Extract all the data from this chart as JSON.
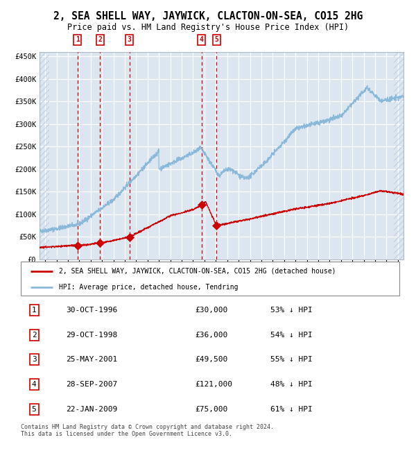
{
  "title": "2, SEA SHELL WAY, JAYWICK, CLACTON-ON-SEA, CO15 2HG",
  "subtitle": "Price paid vs. HM Land Registry's House Price Index (HPI)",
  "title_fontsize": 10.5,
  "subtitle_fontsize": 8.5,
  "bg_color": "#dce6f1",
  "hatch_color": "#c5d3e8",
  "grid_color": "#ffffff",
  "sale_color": "#cc0000",
  "hpi_color": "#89b8d8",
  "vline_color": "#cc0000",
  "ylim": [
    0,
    460000
  ],
  "yticks": [
    0,
    50000,
    100000,
    150000,
    200000,
    250000,
    300000,
    350000,
    400000,
    450000
  ],
  "ytick_labels": [
    "£0",
    "£50K",
    "£100K",
    "£150K",
    "£200K",
    "£250K",
    "£300K",
    "£350K",
    "£400K",
    "£450K"
  ],
  "sales": [
    {
      "date_num": 1996.83,
      "price": 30000,
      "label": "1"
    },
    {
      "date_num": 1998.83,
      "price": 36000,
      "label": "2"
    },
    {
      "date_num": 2001.4,
      "price": 49500,
      "label": "3"
    },
    {
      "date_num": 2007.74,
      "price": 121000,
      "label": "4"
    },
    {
      "date_num": 2009.06,
      "price": 75000,
      "label": "5"
    }
  ],
  "table_rows": [
    {
      "num": "1",
      "date": "30-OCT-1996",
      "price": "£30,000",
      "hpi": "53% ↓ HPI"
    },
    {
      "num": "2",
      "date": "29-OCT-1998",
      "price": "£36,000",
      "hpi": "54% ↓ HPI"
    },
    {
      "num": "3",
      "date": "25-MAY-2001",
      "price": "£49,500",
      "hpi": "55% ↓ HPI"
    },
    {
      "num": "4",
      "date": "28-SEP-2007",
      "price": "£121,000",
      "hpi": "48% ↓ HPI"
    },
    {
      "num": "5",
      "date": "22-JAN-2009",
      "price": "£75,000",
      "hpi": "61% ↓ HPI"
    }
  ],
  "legend_sale": "2, SEA SHELL WAY, JAYWICK, CLACTON-ON-SEA, CO15 2HG (detached house)",
  "legend_hpi": "HPI: Average price, detached house, Tendring",
  "footer": "Contains HM Land Registry data © Crown copyright and database right 2024.\nThis data is licensed under the Open Government Licence v3.0.",
  "xmin": 1993.5,
  "xmax": 2025.5
}
